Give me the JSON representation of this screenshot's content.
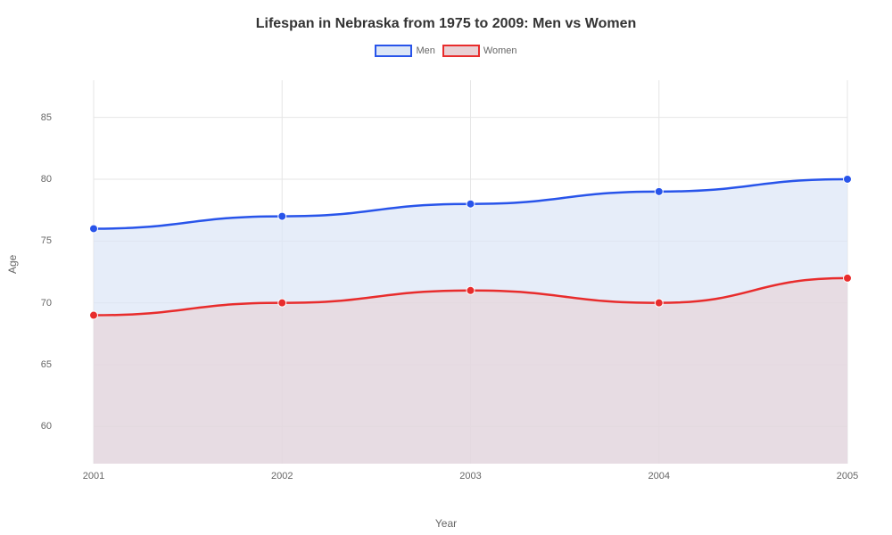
{
  "chart": {
    "type": "area-line",
    "title": "Lifespan in Nebraska from 1975 to 2009: Men vs Women",
    "title_fontsize": 16,
    "title_color": "#333333",
    "background_color": "#ffffff",
    "x_axis": {
      "label": "Year",
      "categories": [
        "2001",
        "2002",
        "2003",
        "2004",
        "2005"
      ],
      "label_fontsize": 12,
      "tick_fontsize": 11,
      "tick_color": "#666666"
    },
    "y_axis": {
      "label": "Age",
      "min": 57,
      "max": 88,
      "ticks": [
        60,
        65,
        70,
        75,
        80,
        85
      ],
      "label_fontsize": 12,
      "tick_fontsize": 11,
      "tick_color": "#666666"
    },
    "grid_color": "#e6e6e6",
    "series": [
      {
        "name": "Men",
        "values": [
          76,
          77,
          78,
          79,
          80
        ],
        "line_color": "#2854ea",
        "fill_color": "#dce6f6",
        "fill_opacity": 0.7,
        "line_width": 2.5,
        "marker_size": 4.5
      },
      {
        "name": "Women",
        "values": [
          69,
          70,
          71,
          70,
          72
        ],
        "line_color": "#e82c2c",
        "fill_color": "#e8d0d4",
        "fill_opacity": 0.6,
        "line_width": 2.5,
        "marker_size": 4.5
      }
    ],
    "legend": {
      "position": "top-center",
      "fontsize": 11
    }
  }
}
